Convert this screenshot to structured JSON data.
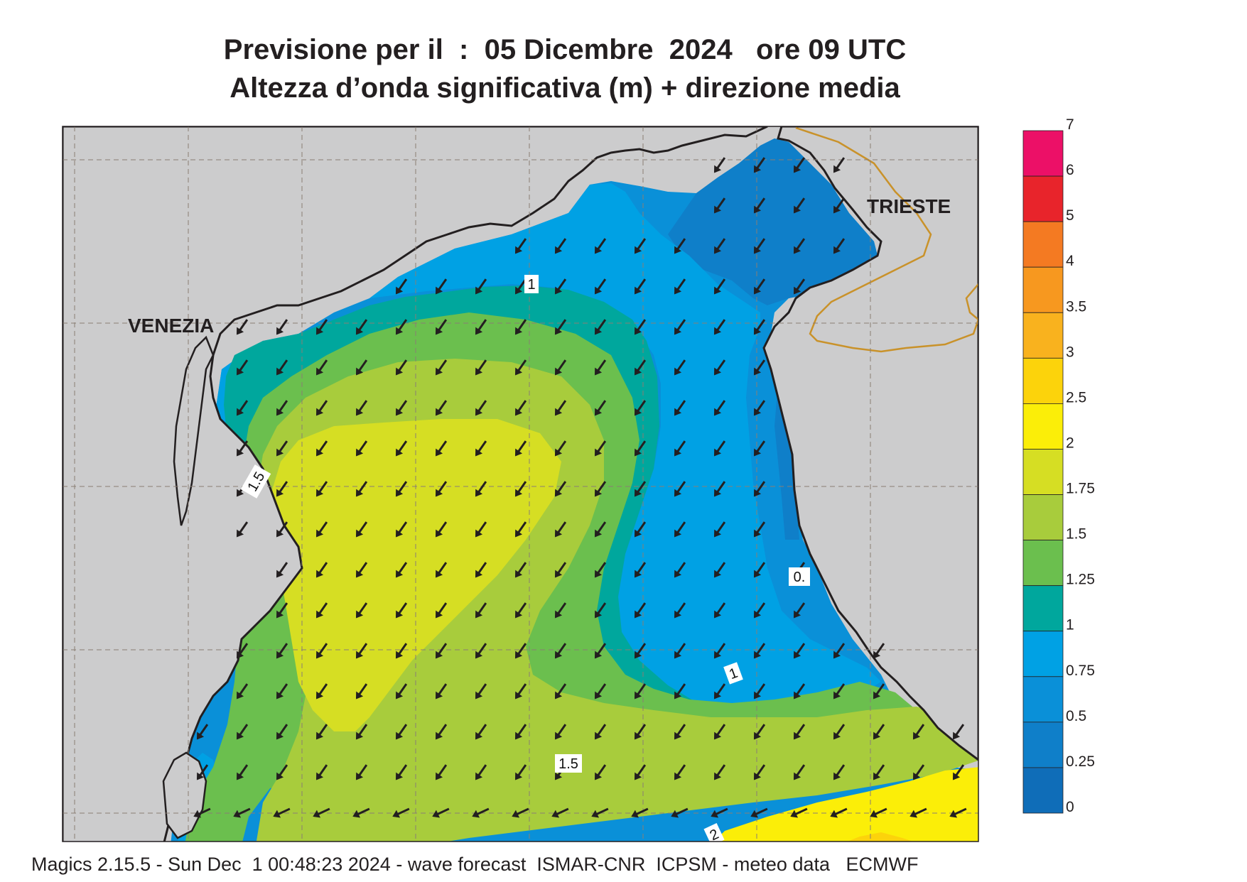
{
  "title": {
    "line1": "Previsione per il  :  05 Dicembre  2024   ore 09 UTC",
    "line2": "Altezza d’onda significativa (m) + direzione media"
  },
  "map": {
    "cities": [
      {
        "name": "VENEZIA"
      },
      {
        "name": "TRIESTE"
      }
    ],
    "contour_labels": [
      "1",
      "1.5",
      "0.",
      "1",
      "1.5",
      "2"
    ]
  },
  "colorbar": {
    "labels": [
      "7",
      "6",
      "5",
      "4",
      "3.5",
      "3",
      "2.5",
      "2",
      "1.75",
      "1.5",
      "1.25",
      "1",
      "0.75",
      "0.5",
      "0.25",
      "0"
    ],
    "colors": [
      "#ec1067",
      "#e8242b",
      "#f47a22",
      "#f7981f",
      "#f9b21e",
      "#fcd30b",
      "#fbee08",
      "#d6de23",
      "#a8cc3c",
      "#6bbf4e",
      "#00a79d",
      "#00a1e4",
      "#0a90d8",
      "#0f7fc9",
      "#0f6db8"
    ]
  },
  "palette": {
    "land": "#cccccd",
    "coast": "#231f20",
    "border": "#c9922a",
    "arrow": "#231f20"
  },
  "footer": "Magics 2.15.5 - Sun Dec  1 00:48:23 2024 - wave forecast  ISMAR-CNR  ICPSM - meteo data   ECMWF"
}
